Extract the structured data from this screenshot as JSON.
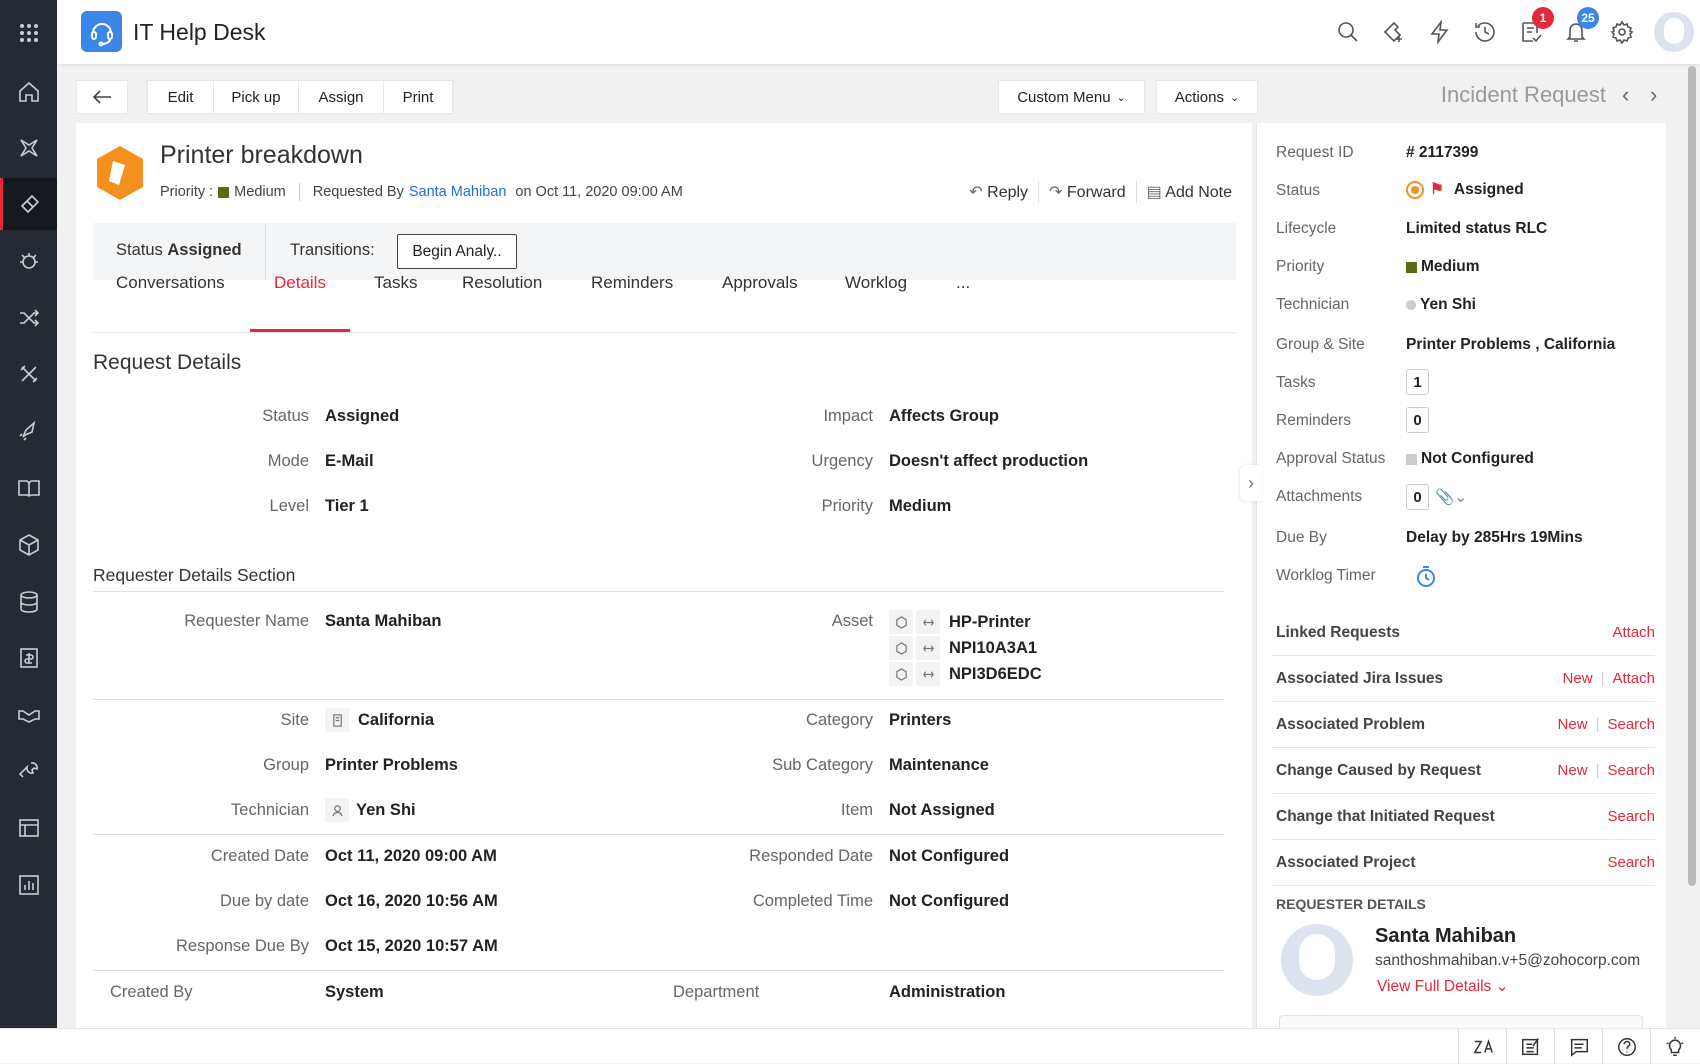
{
  "app": {
    "title": "IT Help Desk"
  },
  "topbar": {
    "icons": [
      "search-icon",
      "add-sticky-icon",
      "lightning-icon",
      "history-icon",
      "tasks-icon",
      "bell-icon",
      "gear-icon",
      "avatar"
    ],
    "tasks_badge": "1",
    "notifications_badge": "25",
    "badge_colors": {
      "tasks": "#e5283a",
      "notifications": "#3c86ea"
    }
  },
  "sidebar": {
    "items": [
      "apps-grid",
      "home",
      "dashboard",
      "requests",
      "problems",
      "changes",
      "releases",
      "projects",
      "solutions",
      "assets",
      "cmdb",
      "purchase",
      "contracts",
      "maintenance",
      "admin",
      "reports"
    ]
  },
  "toolbar": {
    "edit": "Edit",
    "pickup": "Pick up",
    "assign": "Assign",
    "print": "Print",
    "custom_menu": "Custom Menu",
    "actions": "Actions",
    "module_title": "Incident Request"
  },
  "request": {
    "title": "Printer breakdown",
    "priority_label": "Priority :",
    "priority": "Medium",
    "priority_color": "#5a6b12",
    "requested_by_label": "Requested By",
    "requester": "Santa Mahiban",
    "requested_on": "on Oct 11, 2020 09:00 AM",
    "reply": "Reply",
    "forward": "Forward",
    "add_note": "Add Note",
    "status_label": "Status",
    "status": "Assigned",
    "transitions_label": "Transitions:",
    "transition_button": "Begin Analy.."
  },
  "tabs": [
    {
      "label": "Conversations"
    },
    {
      "label": "Details",
      "active": true
    },
    {
      "label": "Tasks"
    },
    {
      "label": "Resolution"
    },
    {
      "label": "Reminders"
    },
    {
      "label": "Approvals"
    },
    {
      "label": "Worklog"
    },
    {
      "label": "..."
    }
  ],
  "details": {
    "heading": "Request Details",
    "fields": [
      {
        "label": "Status",
        "value": "Assigned"
      },
      {
        "label": "Impact",
        "value": "Affects Group"
      },
      {
        "label": "Mode",
        "value": "E-Mail"
      },
      {
        "label": "Urgency",
        "value": "Doesn't affect production"
      },
      {
        "label": "Level",
        "value": "Tier 1"
      },
      {
        "label": "Priority",
        "value": "Medium"
      }
    ],
    "requester_section": "Requester Details Section",
    "requester_name_label": "Requester Name",
    "requester_name": "Santa Mahiban",
    "asset_label": "Asset",
    "assets": [
      "HP-Printer",
      "NPI10A3A1",
      "NPI3D6EDC"
    ],
    "site_label": "Site",
    "site": "California",
    "category_label": "Category",
    "category": "Printers",
    "group_label": "Group",
    "group": "Printer Problems",
    "subcategory_label": "Sub Category",
    "subcategory": "Maintenance",
    "technician_label": "Technician",
    "technician": "Yen Shi",
    "item_label": "Item",
    "item": "Not Assigned",
    "created_date_label": "Created Date",
    "created_date": "Oct 11, 2020 09:00 AM",
    "responded_date_label": "Responded Date",
    "responded_date": "Not Configured",
    "due_by_label": "Due by date",
    "due_by": "Oct 16, 2020 10:56 AM",
    "completed_label": "Completed Time",
    "completed": "Not Configured",
    "response_due_label": "Response Due By",
    "response_due": "Oct 15, 2020 10:57 AM",
    "created_by_label": "Created By",
    "created_by": "System",
    "department_label": "Department",
    "department": "Administration"
  },
  "right_panel": {
    "request_id_label": "Request ID",
    "request_id": "# 2117399",
    "status_label": "Status",
    "status": "Assigned",
    "lifecycle_label": "Lifecycle",
    "lifecycle": "Limited status RLC",
    "priority_label": "Priority",
    "priority": "Medium",
    "technician_label": "Technician",
    "technician": "Yen Shi",
    "group_site_label": "Group & Site",
    "group_site": "Printer Problems , California",
    "tasks_label": "Tasks",
    "tasks": "1",
    "reminders_label": "Reminders",
    "reminders": "0",
    "approval_label": "Approval Status",
    "approval": "Not Configured",
    "attachments_label": "Attachments",
    "attachments": "0",
    "due_by_label": "Due By",
    "due_by": "Delay by 285Hrs 19Mins",
    "worklog_label": "Worklog Timer",
    "links": [
      {
        "title": "Linked Requests",
        "actions": [
          "Attach"
        ]
      },
      {
        "title": "Associated Jira Issues",
        "actions": [
          "New",
          "Attach"
        ]
      },
      {
        "title": "Associated Problem",
        "actions": [
          "New",
          "Search"
        ]
      },
      {
        "title": "Change Caused by Request",
        "actions": [
          "New",
          "Search"
        ]
      },
      {
        "title": "Change that Initiated Request",
        "actions": [
          "Search"
        ]
      },
      {
        "title": "Associated Project",
        "actions": [
          "Search"
        ]
      }
    ],
    "requester_heading": "REQUESTER DETAILS",
    "requester_name": "Santa Mahiban",
    "requester_email": "santhoshmahiban.v+5@zohocorp.com",
    "view_full": "View Full Details"
  },
  "bottombar": {
    "icons": [
      "zia-icon",
      "notes-icon",
      "chat-icon",
      "help-icon",
      "lightbulb-icon"
    ]
  }
}
